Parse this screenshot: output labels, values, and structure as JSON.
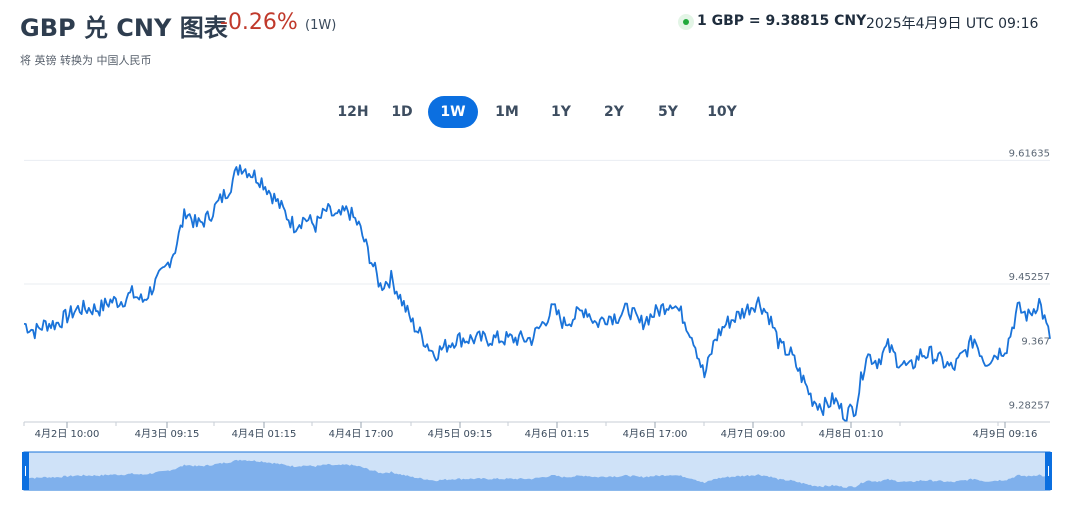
{
  "header": {
    "title": "GBP 兑 CNY 图表",
    "change": "-0.26%",
    "period": "(1W)",
    "subtitle": "将 英镑 转换为 中国人民币",
    "rate": "1 GBP = 9.38815 CNY",
    "timestamp": "2025年4月9日 UTC 09:16"
  },
  "tabs": [
    {
      "label": "12H",
      "active": false
    },
    {
      "label": "1D",
      "active": false
    },
    {
      "label": "1W",
      "active": true
    },
    {
      "label": "1M",
      "active": false
    },
    {
      "label": "1Y",
      "active": false
    },
    {
      "label": "2Y",
      "active": false
    },
    {
      "label": "5Y",
      "active": false
    },
    {
      "label": "10Y",
      "active": false
    }
  ],
  "colors": {
    "line": "#1a73d9",
    "accent": "#0b6fe0",
    "negative": "#c0392b",
    "navigator_fill": "#7fb0ec",
    "navigator_bg": "#cfe2f8"
  },
  "chart_data": {
    "type": "line",
    "title": "",
    "xlabel": "",
    "ylabel": "",
    "ylim": [
      9.27,
      9.63
    ],
    "y_ticks": [
      9.61635,
      9.45257,
      9.36715,
      9.28257
    ],
    "y_tick_labels": [
      "9.61635",
      "9.45257",
      "9.367",
      "9.28257"
    ],
    "x_tick_labels": [
      "4月2日 10:00",
      "4月3日 09:15",
      "4月4日 01:15",
      "4月4日 17:00",
      "4月5日 09:15",
      "4月6日 01:15",
      "4月6日 17:00",
      "4月7日 09:00",
      "4月8日 01:10",
      "4月9日 09:16"
    ],
    "grid": true,
    "series": [
      {
        "values": [
          9.4,
          9.39,
          9.4,
          9.4,
          9.41,
          9.42,
          9.42,
          9.42,
          9.43,
          9.43,
          9.44,
          9.43,
          9.45,
          9.47,
          9.5,
          9.55,
          9.53,
          9.54,
          9.56,
          9.58,
          9.61,
          9.6,
          9.59,
          9.57,
          9.55,
          9.53,
          9.54,
          9.53,
          9.55,
          9.54,
          9.55,
          9.53,
          9.49,
          9.45,
          9.46,
          9.43,
          9.4,
          9.38,
          9.36,
          9.37,
          9.38,
          9.38,
          9.38,
          9.38,
          9.38,
          9.38,
          9.38,
          9.38,
          9.4,
          9.42,
          9.4,
          9.41,
          9.42,
          9.4,
          9.41,
          9.41,
          9.42,
          9.4,
          9.41,
          9.42,
          9.43,
          9.41,
          9.38,
          9.33,
          9.38,
          9.4,
          9.41,
          9.42,
          9.43,
          9.41,
          9.37,
          9.36,
          9.33,
          9.3,
          9.29,
          9.3,
          9.28,
          9.29,
          9.36,
          9.35,
          9.37,
          9.35,
          9.34,
          9.36,
          9.36,
          9.35,
          9.34,
          9.36,
          9.38,
          9.35,
          9.36,
          9.37,
          9.42,
          9.41,
          9.43,
          9.38
        ]
      }
    ]
  }
}
